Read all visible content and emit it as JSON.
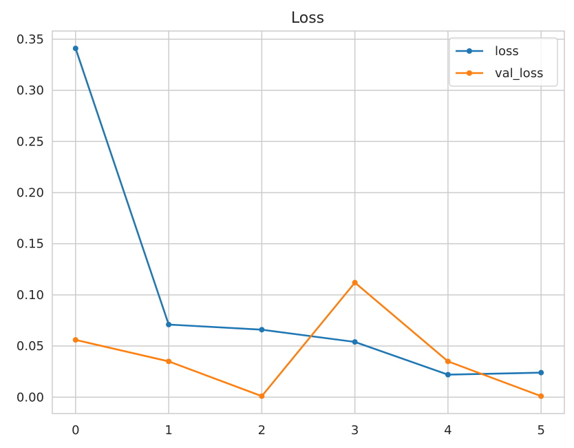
{
  "chart_data": {
    "type": "line",
    "title": "Loss",
    "xlabel": "",
    "ylabel": "",
    "x": [
      0,
      1,
      2,
      3,
      4,
      5
    ],
    "xticks": [
      "0",
      "1",
      "2",
      "3",
      "4",
      "5"
    ],
    "yticks": [
      "0.00",
      "0.05",
      "0.10",
      "0.15",
      "0.20",
      "0.25",
      "0.30",
      "0.35"
    ],
    "ytick_values": [
      0.0,
      0.05,
      0.1,
      0.15,
      0.2,
      0.25,
      0.3,
      0.35
    ],
    "xlim": [
      -0.25,
      5.25
    ],
    "ylim": [
      -0.016,
      0.358
    ],
    "grid": true,
    "legend_position": "top-right",
    "series": [
      {
        "name": "loss",
        "color": "#1f77b4",
        "marker": "circle",
        "values": [
          0.341,
          0.071,
          0.066,
          0.054,
          0.022,
          0.024
        ]
      },
      {
        "name": "val_loss",
        "color": "#ff7f0e",
        "marker": "circle",
        "values": [
          0.056,
          0.035,
          0.001,
          0.112,
          0.035,
          0.001
        ]
      }
    ]
  }
}
